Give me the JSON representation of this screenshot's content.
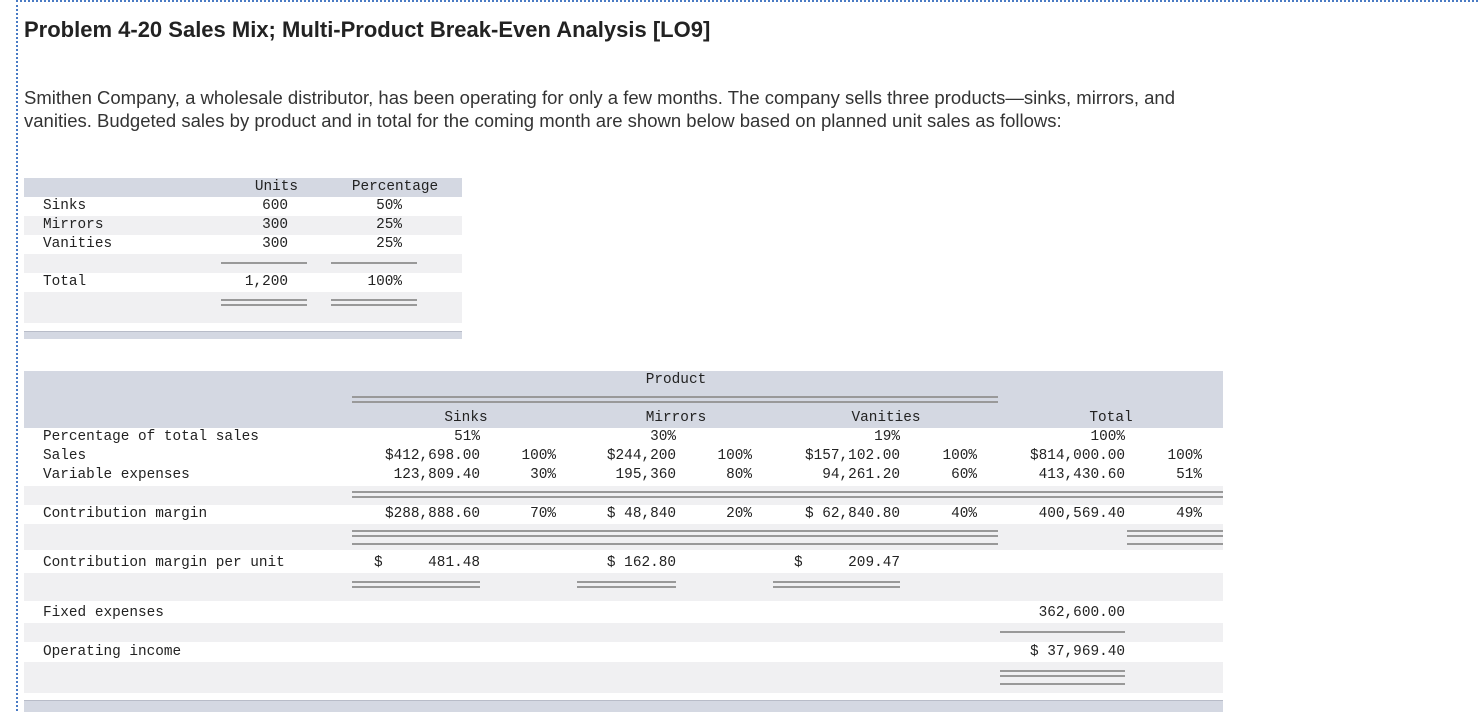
{
  "problem": {
    "title": "Problem 4-20 Sales Mix; Multi-Product Break-Even Analysis [LO9]",
    "intro": "Smithen Company, a wholesale distributor, has been operating for only a few months. The company sells three products—sinks, mirrors, and vanities. Budgeted sales by product and in total for the coming month are shown below based on planned unit sales as follows:"
  },
  "mix_table": {
    "headers": {
      "units": "Units",
      "percentage": "Percentage"
    },
    "rows": [
      {
        "label": "Sinks",
        "units": "600",
        "pct": "50%"
      },
      {
        "label": "Mirrors",
        "units": "300",
        "pct": "25%"
      },
      {
        "label": "Vanities",
        "units": "300",
        "pct": "25%"
      }
    ],
    "total": {
      "label": "Total",
      "units": "1,200",
      "pct": "100%"
    }
  },
  "income_table": {
    "group_header": "Product",
    "columns": [
      "Sinks",
      "Mirrors",
      "Vanities",
      "Total"
    ],
    "pct_row": {
      "label": "Percentage of total sales",
      "values": [
        "51%",
        "30%",
        "19%",
        "100%"
      ]
    },
    "sales_row": {
      "label": "Sales",
      "values": [
        "$412,698.00",
        "$244,200",
        "$157,102.00",
        "$814,000.00"
      ],
      "pcts": [
        "100%",
        "100%",
        "100%",
        "100%"
      ]
    },
    "var_row": {
      "label": "Variable expenses",
      "values": [
        "123,809.40",
        "195,360",
        "94,261.20",
        "413,430.60"
      ],
      "pcts": [
        "30%",
        "80%",
        "60%",
        "51%"
      ]
    },
    "cm_row": {
      "label": "Contribution margin",
      "values": [
        "$288,888.60",
        "$ 48,840",
        "$ 62,840.80",
        "400,569.40"
      ],
      "pcts": [
        "70%",
        "20%",
        "40%",
        "49%"
      ]
    },
    "cmu_row": {
      "label": "Contribution margin per unit",
      "sinks_sym": "$",
      "sinks_val": "481.48",
      "mirrors": "$ 162.80",
      "vanities_sym": "$",
      "vanities_val": "209.47"
    },
    "fixed_row": {
      "label": "Fixed expenses",
      "total": "362,600.00"
    },
    "oi_row": {
      "label": "Operating income",
      "total": "$ 37,969.40"
    }
  }
}
